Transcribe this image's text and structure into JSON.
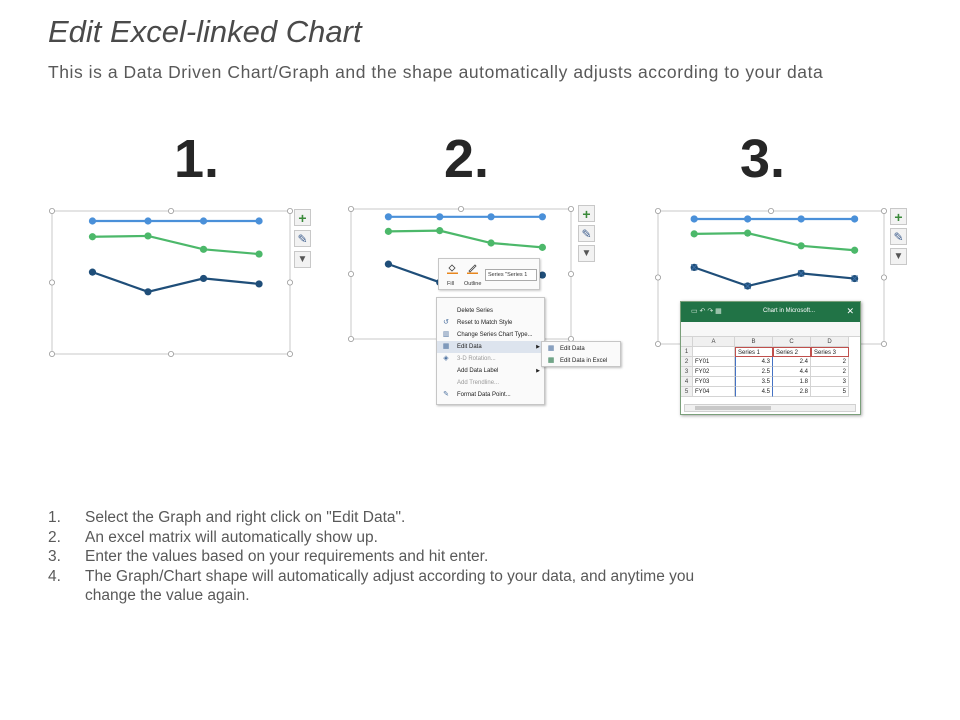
{
  "header": {
    "title": "Edit Excel-linked Chart",
    "subtitle": "This is a Data Driven Chart/Graph and the shape automatically adjusts according to your data"
  },
  "steps": [
    {
      "number": "1."
    },
    {
      "number": "2."
    },
    {
      "number": "3."
    }
  ],
  "colors": {
    "series_top": "#4a90d9",
    "series_mid": "#4cb86a",
    "series_low": "#1f4e79",
    "excel_green": "#217346"
  },
  "chart_data": {
    "type": "line",
    "categories": [
      "FY01",
      "FY02",
      "FY03",
      "FY04"
    ],
    "series": [
      {
        "name": "Series 1",
        "values": [
          4.3,
          2.5,
          3.5,
          4.5
        ]
      },
      {
        "name": "Series 2",
        "values": [
          2.4,
          4.4,
          1.8,
          2.8
        ]
      },
      {
        "name": "Series 3",
        "values": [
          2,
          2,
          3,
          5
        ]
      }
    ],
    "title": "",
    "xlabel": "",
    "ylabel": "",
    "grid": false,
    "legend": "none"
  },
  "mini_chart": {
    "series": [
      {
        "values": [
          100,
          100,
          100,
          100
        ]
      },
      {
        "values": [
          80,
          81,
          64,
          58
        ]
      },
      {
        "values": [
          35,
          10,
          27,
          20
        ]
      }
    ]
  },
  "context_menu": {
    "mini_toolbar": {
      "fill_label": "Fill",
      "outline_label": "Outline",
      "series_select": "Series \"Series 1"
    },
    "items": [
      {
        "label": "Delete Series",
        "disabled": false,
        "icon": ""
      },
      {
        "label": "Reset to Match Style",
        "disabled": false,
        "icon": "reset-icon"
      },
      {
        "label": "Change Series Chart Type...",
        "disabled": false,
        "icon": "chart-type-icon"
      },
      {
        "label": "Edit Data",
        "disabled": false,
        "icon": "table-icon",
        "submenu": true
      },
      {
        "label": "3-D Rotation...",
        "disabled": true,
        "icon": "rotate-icon"
      },
      {
        "label": "Add Data Label",
        "disabled": false,
        "icon": "",
        "submenu": true
      },
      {
        "label": "Add Trendline...",
        "disabled": true,
        "icon": ""
      },
      {
        "label": "Format Data Point...",
        "disabled": false,
        "icon": "format-icon"
      }
    ],
    "submenu": [
      {
        "label": "Edit Data"
      },
      {
        "label": "Edit Data in Excel"
      }
    ]
  },
  "excel": {
    "window_title": "Chart in Microsoft...",
    "close_glyph": "✕",
    "columns": [
      "A",
      "B",
      "C",
      "D"
    ],
    "row_numbers": [
      "1",
      "2",
      "3",
      "4",
      "5"
    ],
    "header_row": [
      "",
      "Series 1",
      "Series 2",
      "Series 3"
    ],
    "rows": [
      [
        "FY01",
        "4.3",
        "2.4",
        "2"
      ],
      [
        "FY02",
        "2.5",
        "4.4",
        "2"
      ],
      [
        "FY03",
        "3.5",
        "1.8",
        "3"
      ],
      [
        "FY04",
        "4.5",
        "2.8",
        "5"
      ]
    ]
  },
  "instructions": [
    {
      "num": "1.",
      "text": "Select the Graph and right click on \"Edit Data\"."
    },
    {
      "num": "2.",
      "text": "An excel matrix will automatically show up."
    },
    {
      "num": "3.",
      "text": "Enter the values based on your requirements and hit enter."
    },
    {
      "num": "4.",
      "text": "The Graph/Chart shape will automatically adjust according to your data, and anytime you change the value again."
    }
  ]
}
